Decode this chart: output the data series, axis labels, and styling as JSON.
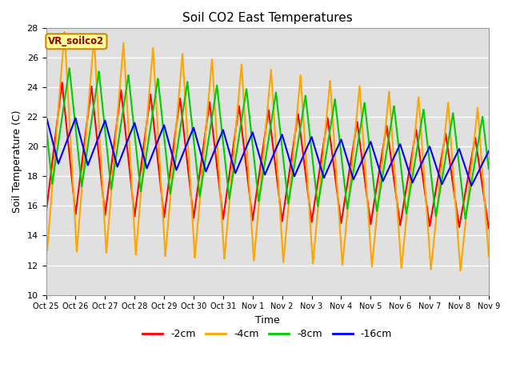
{
  "title": "Soil CO2 East Temperatures",
  "xlabel": "Time",
  "ylabel": "Soil Temperature (C)",
  "ylim": [
    10,
    28
  ],
  "background_color": "#ffffff",
  "plot_bg_color": "#e0e0e0",
  "grid_color": "#ffffff",
  "annotation_text": "VR_soilco2",
  "annotation_bg": "#ffff99",
  "annotation_border": "#cc8800",
  "annotation_text_color": "#990000",
  "tick_labels": [
    "Oct 25",
    "Oct 26",
    "Oct 27",
    "Oct 28",
    "Oct 29",
    "Oct 30",
    "Oct 31",
    "Nov 1",
    "Nov 2",
    "Nov 3",
    "Nov 4",
    "Nov 5",
    "Nov 6",
    "Nov 7",
    "Nov 8",
    "Nov 9"
  ],
  "legend": [
    {
      "label": "-2cm",
      "color": "#ff0000"
    },
    {
      "label": "-4cm",
      "color": "#ffa500"
    },
    {
      "label": "-8cm",
      "color": "#00cc00"
    },
    {
      "label": "-16cm",
      "color": "#0000ff"
    }
  ],
  "series_colors": [
    "#ff0000",
    "#ffa500",
    "#00cc00",
    "#0000ff"
  ],
  "series_linewidth": 1.5,
  "n_days": 15,
  "hours_total": 360
}
